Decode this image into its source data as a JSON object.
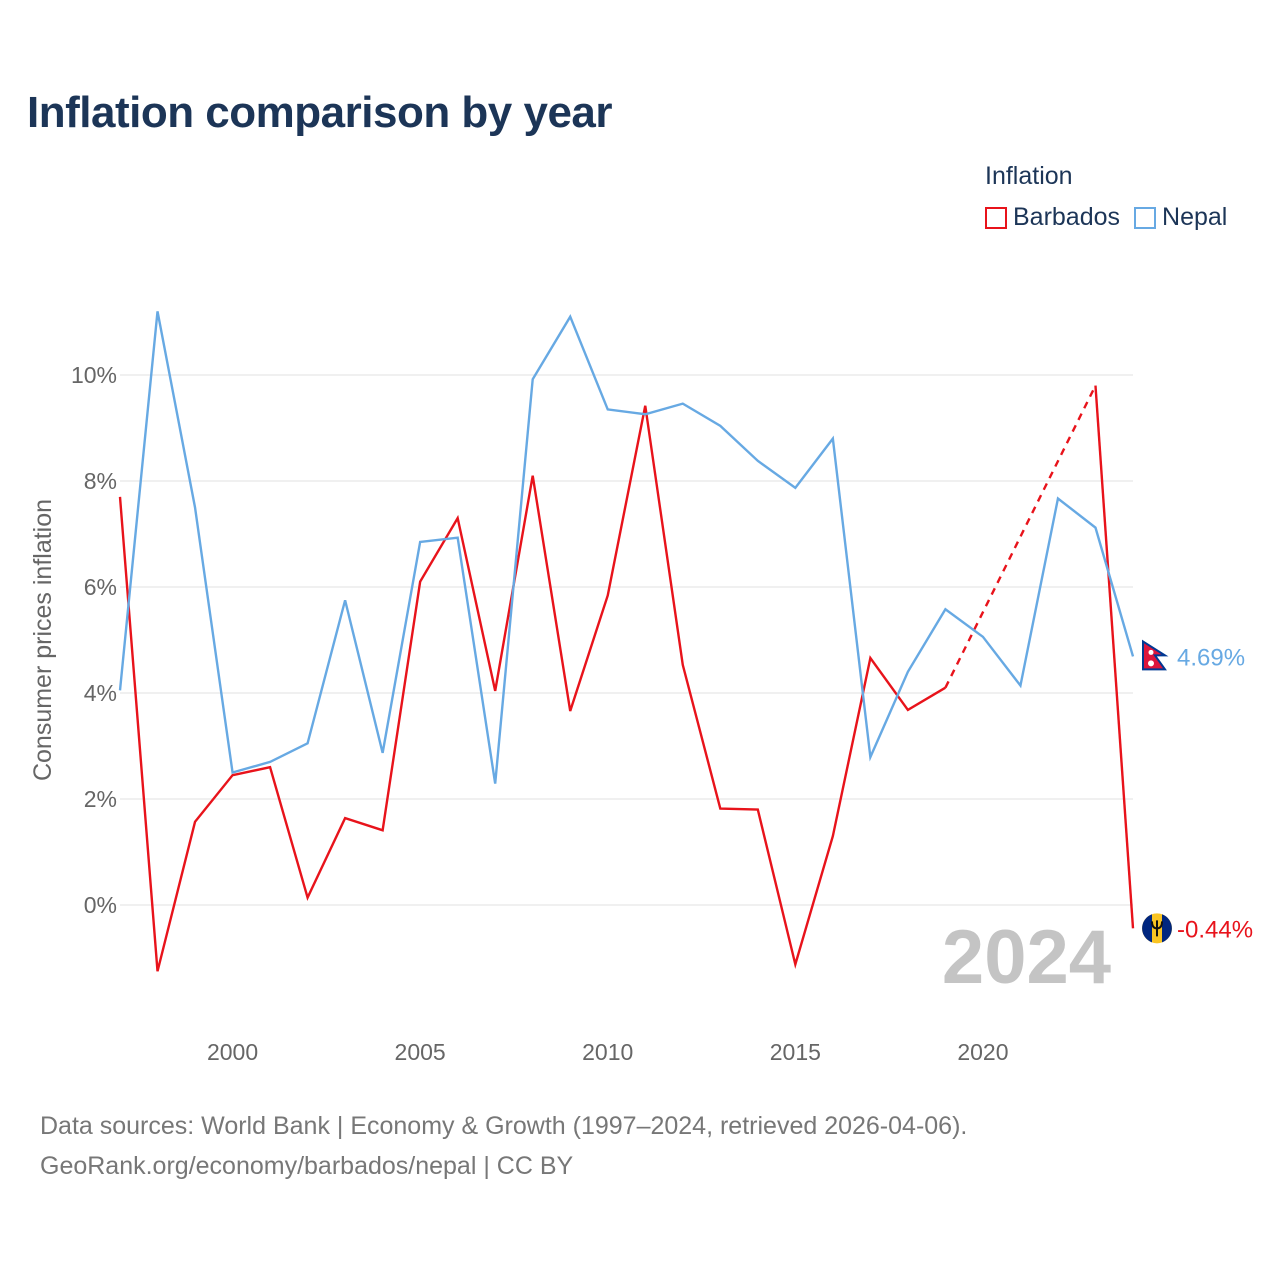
{
  "title": "Inflation comparison by year",
  "legend": {
    "title": "Inflation",
    "items": [
      {
        "label": "Barbados",
        "color": "#e8131b"
      },
      {
        "label": "Nepal",
        "color": "#67a9e3"
      }
    ]
  },
  "source": {
    "line1": "Data sources: World Bank | Economy & Growth (1997–2024, retrieved 2026-04-06).",
    "line2": "GeoRank.org/economy/barbados/nepal | CC BY"
  },
  "chart_data": {
    "type": "line",
    "title": "Inflation comparison by year",
    "xlabel": "",
    "ylabel": "Consumer prices inflation",
    "xlim": [
      1997,
      2024
    ],
    "ylim": [
      -1.6,
      11.5
    ],
    "x_ticks": [
      2000,
      2005,
      2010,
      2015,
      2020
    ],
    "y_ticks": [
      0,
      2,
      4,
      6,
      8,
      10
    ],
    "y_tick_labels": [
      "0%",
      "2%",
      "4%",
      "6%",
      "8%",
      "10%"
    ],
    "year_label": "2024",
    "grid": true,
    "legend_position": "top-right",
    "series": [
      {
        "name": "Barbados",
        "color": "#e8131b",
        "x": [
          1997,
          1998,
          1999,
          2000,
          2001,
          2002,
          2003,
          2004,
          2005,
          2006,
          2007,
          2008,
          2009,
          2010,
          2011,
          2012,
          2013,
          2014,
          2015,
          2016,
          2017,
          2018,
          2019,
          2023,
          2024
        ],
        "values": [
          7.7,
          -1.25,
          1.57,
          2.45,
          2.6,
          0.14,
          1.64,
          1.41,
          6.1,
          7.3,
          4.04,
          8.1,
          3.66,
          5.84,
          9.42,
          4.53,
          1.82,
          1.8,
          -1.12,
          1.3,
          4.66,
          3.68,
          4.1,
          9.8,
          -0.44
        ],
        "gap": {
          "from": 2019,
          "to": 2023,
          "style": "dashed"
        },
        "end_label": "-0.44%"
      },
      {
        "name": "Nepal",
        "color": "#67a9e3",
        "x": [
          1997,
          1998,
          1999,
          2000,
          2001,
          2002,
          2003,
          2004,
          2005,
          2006,
          2007,
          2008,
          2009,
          2010,
          2011,
          2012,
          2013,
          2014,
          2015,
          2016,
          2017,
          2018,
          2019,
          2020,
          2021,
          2022,
          2023,
          2024
        ],
        "values": [
          4.05,
          11.2,
          7.5,
          2.5,
          2.7,
          3.05,
          5.75,
          2.87,
          6.85,
          6.93,
          2.29,
          9.92,
          11.1,
          9.35,
          9.26,
          9.46,
          9.04,
          8.38,
          7.87,
          8.8,
          2.79,
          4.4,
          5.58,
          5.06,
          4.14,
          7.67,
          7.12,
          4.69
        ],
        "end_label": "4.69%"
      }
    ]
  }
}
